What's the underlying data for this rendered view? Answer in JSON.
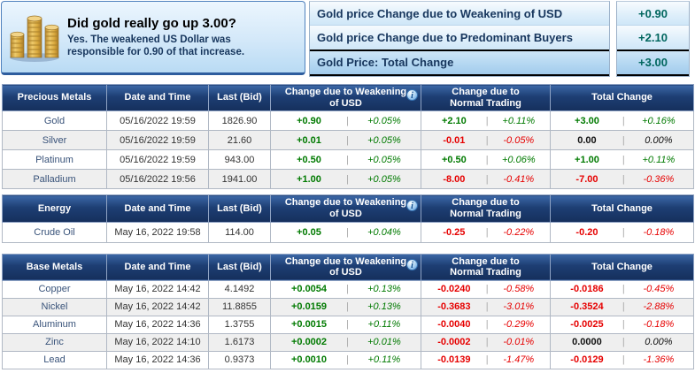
{
  "card": {
    "title": "Did gold really go up 3.00?",
    "subtitle": "Yes. The weakened US Dollar was responsible for 0.90 of that increase."
  },
  "gold_summary": {
    "rows": [
      {
        "label": "Gold price Change due to Weakening of USD",
        "value": "+0.90"
      },
      {
        "label": "Gold price Change due to Predominant Buyers",
        "value": "+2.10"
      },
      {
        "label": "Gold Price: Total Change",
        "value": "+3.00"
      }
    ]
  },
  "column_headers": {
    "date": "Date and Time",
    "last": "Last (Bid)",
    "usd": "Change due to Weakening of USD",
    "trading": "Change due to Normal Trading",
    "total": "Total Change",
    "info_glyph": "i"
  },
  "market_tables": [
    {
      "id": "precious-metals",
      "css": "t-precious",
      "category": "Precious Metals",
      "rows": [
        {
          "name": "Gold",
          "datetime": "05/16/2022 19:59",
          "last": "1826.90",
          "usd_change": "+0.90",
          "usd_pct": "+0.05%",
          "trade_change": "+2.10",
          "trade_pct": "+0.11%",
          "total_change": "+3.00",
          "total_pct": "+0.16%"
        },
        {
          "name": "Silver",
          "datetime": "05/16/2022 19:59",
          "last": "21.60",
          "usd_change": "+0.01",
          "usd_pct": "+0.05%",
          "trade_change": "-0.01",
          "trade_pct": "-0.05%",
          "total_change": "0.00",
          "total_pct": "0.00%"
        },
        {
          "name": "Platinum",
          "datetime": "05/16/2022 19:59",
          "last": "943.00",
          "usd_change": "+0.50",
          "usd_pct": "+0.05%",
          "trade_change": "+0.50",
          "trade_pct": "+0.06%",
          "total_change": "+1.00",
          "total_pct": "+0.11%"
        },
        {
          "name": "Palladium",
          "datetime": "05/16/2022 19:56",
          "last": "1941.00",
          "usd_change": "+1.00",
          "usd_pct": "+0.05%",
          "trade_change": "-8.00",
          "trade_pct": "-0.41%",
          "total_change": "-7.00",
          "total_pct": "-0.36%"
        }
      ]
    },
    {
      "id": "energy",
      "css": "t-energy",
      "category": "Energy",
      "rows": [
        {
          "name": "Crude Oil",
          "datetime": "May 16, 2022 19:58",
          "last": "114.00",
          "usd_change": "+0.05",
          "usd_pct": "+0.04%",
          "trade_change": "-0.25",
          "trade_pct": "-0.22%",
          "total_change": "-0.20",
          "total_pct": "-0.18%"
        }
      ]
    },
    {
      "id": "base-metals",
      "css": "t-base",
      "category": "Base Metals",
      "rows": [
        {
          "name": "Copper",
          "datetime": "May 16, 2022 14:42",
          "last": "4.1492",
          "usd_change": "+0.0054",
          "usd_pct": "+0.13%",
          "trade_change": "-0.0240",
          "trade_pct": "-0.58%",
          "total_change": "-0.0186",
          "total_pct": "-0.45%"
        },
        {
          "name": "Nickel",
          "datetime": "May 16, 2022 14:42",
          "last": "11.8855",
          "usd_change": "+0.0159",
          "usd_pct": "+0.13%",
          "trade_change": "-0.3683",
          "trade_pct": "-3.01%",
          "total_change": "-0.3524",
          "total_pct": "-2.88%"
        },
        {
          "name": "Aluminum",
          "datetime": "May 16, 2022 14:36",
          "last": "1.3755",
          "usd_change": "+0.0015",
          "usd_pct": "+0.11%",
          "trade_change": "-0.0040",
          "trade_pct": "-0.29%",
          "total_change": "-0.0025",
          "total_pct": "-0.18%"
        },
        {
          "name": "Zinc",
          "datetime": "May 16, 2022 14:10",
          "last": "1.6173",
          "usd_change": "+0.0002",
          "usd_pct": "+0.01%",
          "trade_change": "-0.0002",
          "trade_pct": "-0.01%",
          "total_change": "0.0000",
          "total_pct": "0.00%"
        },
        {
          "name": "Lead",
          "datetime": "May 16, 2022 14:36",
          "last": "0.9373",
          "usd_change": "+0.0010",
          "usd_pct": "+0.11%",
          "trade_change": "-0.0139",
          "trade_pct": "-1.47%",
          "total_change": "-0.0129",
          "total_pct": "-1.36%"
        }
      ]
    }
  ],
  "colors": {
    "positive": "#007a00",
    "negative": "#e60000",
    "zero": "#111111",
    "header_navy": "#1d3e73",
    "summary_value_teal": "#00665e",
    "card_navy_text": "#17365d"
  }
}
